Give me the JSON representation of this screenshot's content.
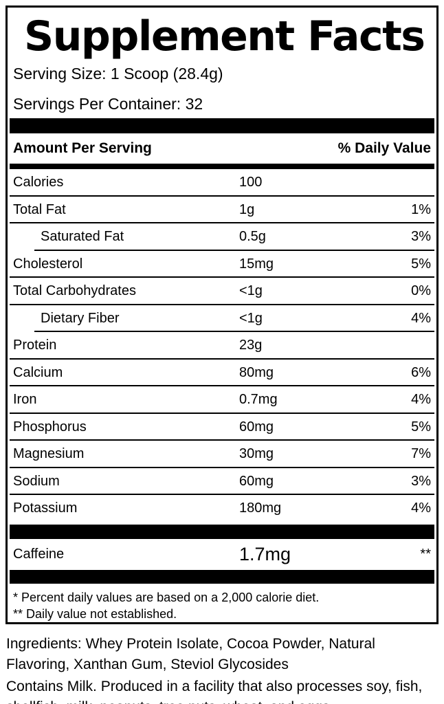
{
  "panel": {
    "title": "Supplement Facts",
    "serving_size": "Serving Size: 1 Scoop (28.4g)",
    "servings_per_container": "Servings Per Container: 32",
    "header": {
      "left": "Amount Per Serving",
      "right": "% Daily Value"
    },
    "rows": [
      {
        "name": "Calories",
        "amount": "100",
        "dv": "",
        "indent": false
      },
      {
        "name": "Total Fat",
        "amount": "1g",
        "dv": "1%",
        "indent": false
      },
      {
        "name": "Saturated Fat",
        "amount": "0.5g",
        "dv": "3%",
        "indent": true
      },
      {
        "name": "Cholesterol",
        "amount": "15mg",
        "dv": "5%",
        "indent": false
      },
      {
        "name": "Total Carbohydrates",
        "amount": "<1g",
        "dv": "0%",
        "indent": false
      },
      {
        "name": "Dietary Fiber",
        "amount": "<1g",
        "dv": "4%",
        "indent": true
      },
      {
        "name": "Protein",
        "amount": "23g",
        "dv": "",
        "indent": false
      },
      {
        "name": "Calcium",
        "amount": "80mg",
        "dv": "6%",
        "indent": false
      },
      {
        "name": "Iron",
        "amount": "0.7mg",
        "dv": "4%",
        "indent": false
      },
      {
        "name": "Phosphorus",
        "amount": "60mg",
        "dv": "5%",
        "indent": false
      },
      {
        "name": "Magnesium",
        "amount": "30mg",
        "dv": "7%",
        "indent": false
      },
      {
        "name": "Sodium",
        "amount": "60mg",
        "dv": "3%",
        "indent": false
      },
      {
        "name": "Potassium",
        "amount": "180mg",
        "dv": "4%",
        "indent": false
      }
    ],
    "caffeine": {
      "name": "Caffeine",
      "amount": "1.7mg",
      "dv": "**"
    },
    "footnotes": [
      "* Percent daily values are based on a 2,000 calorie diet.",
      "** Daily value not established."
    ]
  },
  "ingredients": "Ingredients: Whey Protein Isolate, Cocoa Powder, Natural Flavoring, Xanthan Gum, Steviol Glycosides",
  "allergen": "Contains Milk. Produced in a facility that also processes soy, fish, shellfish, milk, peanuts, tree nuts, wheat, and eggs.",
  "colors": {
    "text": "#000000",
    "background": "#ffffff",
    "bar": "#000000"
  }
}
